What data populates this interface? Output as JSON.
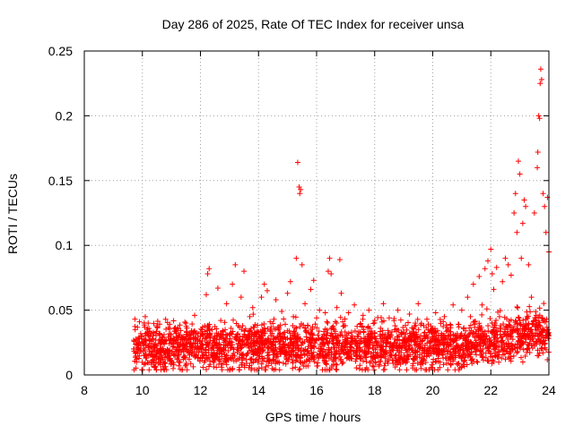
{
  "chart_data": {
    "type": "scatter",
    "title": "Day 286 of 2025, Rate Of TEC Index for receiver unsa",
    "xlabel": "GPS time / hours",
    "ylabel": "ROTI / TECUs",
    "xlim": [
      8,
      24
    ],
    "ylim": [
      0,
      0.25
    ],
    "xticks": [
      8,
      10,
      12,
      14,
      16,
      18,
      20,
      22,
      24
    ],
    "xtick_labels": [
      "8",
      "10",
      "12",
      "14",
      "16",
      "18",
      "20",
      "22",
      "24"
    ],
    "yticks": [
      0,
      0.05,
      0.1,
      0.15,
      0.2,
      0.25
    ],
    "ytick_labels": [
      "0",
      "0.05",
      "0.1",
      "0.15",
      "0.2",
      "0.25"
    ],
    "grid": true,
    "marker": "+",
    "color": "#ff0000",
    "series": [
      {
        "name": "ROTI",
        "points": [
          [
            9.7,
            0.02
          ],
          [
            9.75,
            0.035
          ],
          [
            9.8,
            0.012
          ],
          [
            9.85,
            0.028
          ],
          [
            9.9,
            0.041
          ],
          [
            9.95,
            0.018
          ],
          [
            10.0,
            0.025
          ],
          [
            10.1,
            0.045
          ],
          [
            10.2,
            0.015
          ],
          [
            10.3,
            0.032
          ],
          [
            10.4,
            0.022
          ],
          [
            10.5,
            0.038
          ],
          [
            10.6,
            0.014
          ],
          [
            10.7,
            0.029
          ],
          [
            10.8,
            0.043
          ],
          [
            10.9,
            0.019
          ],
          [
            11.0,
            0.027
          ],
          [
            11.1,
            0.036
          ],
          [
            11.2,
            0.013
          ],
          [
            11.3,
            0.031
          ],
          [
            11.4,
            0.024
          ],
          [
            11.5,
            0.04
          ],
          [
            11.6,
            0.017
          ],
          [
            11.7,
            0.034
          ],
          [
            11.8,
            0.046
          ],
          [
            11.9,
            0.021
          ],
          [
            12.0,
            0.03
          ],
          [
            12.1,
            0.015
          ],
          [
            12.2,
            0.062
          ],
          [
            12.25,
            0.078
          ],
          [
            12.3,
            0.082
          ],
          [
            12.4,
            0.035
          ],
          [
            12.5,
            0.028
          ],
          [
            12.6,
            0.067
          ],
          [
            12.7,
            0.042
          ],
          [
            12.8,
            0.019
          ],
          [
            12.9,
            0.055
          ],
          [
            13.0,
            0.031
          ],
          [
            13.1,
            0.07
          ],
          [
            13.2,
            0.085
          ],
          [
            13.3,
            0.038
          ],
          [
            13.4,
            0.06
          ],
          [
            13.5,
            0.08
          ],
          [
            13.6,
            0.027
          ],
          [
            13.7,
            0.045
          ],
          [
            13.8,
            0.052
          ],
          [
            13.9,
            0.018
          ],
          [
            14.0,
            0.033
          ],
          [
            14.1,
            0.06
          ],
          [
            14.2,
            0.07
          ],
          [
            14.3,
            0.065
          ],
          [
            14.4,
            0.041
          ],
          [
            14.5,
            0.024
          ],
          [
            14.6,
            0.058
          ],
          [
            14.7,
            0.037
          ],
          [
            14.8,
            0.049
          ],
          [
            14.9,
            0.016
          ],
          [
            15.0,
            0.063
          ],
          [
            15.1,
            0.072
          ],
          [
            15.2,
            0.045
          ],
          [
            15.3,
            0.09
          ],
          [
            15.35,
            0.164
          ],
          [
            15.4,
            0.145
          ],
          [
            15.42,
            0.14
          ],
          [
            15.45,
            0.143
          ],
          [
            15.5,
            0.085
          ],
          [
            15.6,
            0.055
          ],
          [
            15.7,
            0.038
          ],
          [
            15.8,
            0.066
          ],
          [
            15.9,
            0.073
          ],
          [
            16.0,
            0.044
          ],
          [
            16.1,
            0.05
          ],
          [
            16.2,
            0.029
          ],
          [
            16.3,
            0.048
          ],
          [
            16.4,
            0.08
          ],
          [
            16.45,
            0.09
          ],
          [
            16.5,
            0.078
          ],
          [
            16.6,
            0.035
          ],
          [
            16.7,
            0.052
          ],
          [
            16.8,
            0.089
          ],
          [
            16.85,
            0.063
          ],
          [
            16.9,
            0.041
          ],
          [
            17.0,
            0.026
          ],
          [
            17.1,
            0.048
          ],
          [
            17.2,
            0.033
          ],
          [
            17.3,
            0.054
          ],
          [
            17.4,
            0.019
          ],
          [
            17.5,
            0.039
          ],
          [
            17.6,
            0.046
          ],
          [
            17.7,
            0.023
          ],
          [
            17.8,
            0.05
          ],
          [
            17.9,
            0.031
          ],
          [
            18.0,
            0.042
          ],
          [
            18.1,
            0.017
          ],
          [
            18.2,
            0.036
          ],
          [
            18.3,
            0.055
          ],
          [
            18.4,
            0.028
          ],
          [
            18.5,
            0.044
          ],
          [
            18.6,
            0.021
          ],
          [
            18.7,
            0.038
          ],
          [
            18.8,
            0.05
          ],
          [
            18.9,
            0.014
          ],
          [
            19.0,
            0.033
          ],
          [
            19.1,
            0.026
          ],
          [
            19.2,
            0.047
          ],
          [
            19.3,
            0.019
          ],
          [
            19.4,
            0.04
          ],
          [
            19.5,
            0.055
          ],
          [
            19.6,
            0.005
          ],
          [
            19.7,
            0.03
          ],
          [
            19.8,
            0.043
          ],
          [
            19.9,
            0.022
          ],
          [
            20.0,
            0.036
          ],
          [
            20.1,
            0.048
          ],
          [
            20.2,
            0.018
          ],
          [
            20.3,
            0.032
          ],
          [
            20.4,
            0.045
          ],
          [
            20.5,
            0.025
          ],
          [
            20.6,
            0.039
          ],
          [
            20.7,
            0.054
          ],
          [
            20.8,
            0.02
          ],
          [
            20.9,
            0.037
          ],
          [
            21.0,
            0.05
          ],
          [
            21.1,
            0.028
          ],
          [
            21.2,
            0.06
          ],
          [
            21.3,
            0.045
          ],
          [
            21.4,
            0.07
          ],
          [
            21.5,
            0.032
          ],
          [
            21.6,
            0.076
          ],
          [
            21.7,
            0.054
          ],
          [
            21.8,
            0.082
          ],
          [
            21.9,
            0.088
          ],
          [
            22.0,
            0.097
          ],
          [
            22.05,
            0.078
          ],
          [
            22.1,
            0.066
          ],
          [
            22.2,
            0.083
          ],
          [
            22.3,
            0.045
          ],
          [
            22.4,
            0.072
          ],
          [
            22.5,
            0.09
          ],
          [
            22.6,
            0.085
          ],
          [
            22.7,
            0.077
          ],
          [
            22.8,
            0.125
          ],
          [
            22.85,
            0.14
          ],
          [
            22.9,
            0.11
          ],
          [
            22.95,
            0.165
          ],
          [
            23.0,
            0.155
          ],
          [
            23.05,
            0.09
          ],
          [
            23.1,
            0.117
          ],
          [
            23.15,
            0.135
          ],
          [
            23.2,
            0.13
          ],
          [
            23.3,
            0.085
          ],
          [
            23.4,
            0.06
          ],
          [
            23.5,
            0.125
          ],
          [
            23.6,
            0.16
          ],
          [
            23.62,
            0.172
          ],
          [
            23.65,
            0.2
          ],
          [
            23.68,
            0.198
          ],
          [
            23.7,
            0.225
          ],
          [
            23.72,
            0.236
          ],
          [
            23.75,
            0.228
          ],
          [
            23.8,
            0.14
          ],
          [
            23.85,
            0.13
          ],
          [
            23.9,
            0.11
          ],
          [
            23.95,
            0.137
          ],
          [
            24.0,
            0.095
          ]
        ]
      }
    ]
  }
}
